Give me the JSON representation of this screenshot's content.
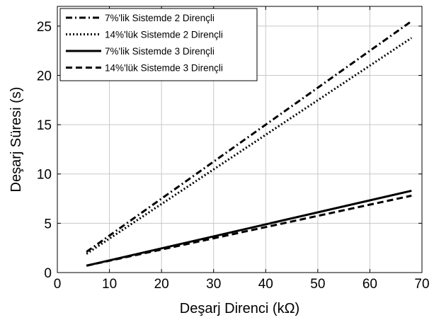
{
  "chart_data": {
    "type": "line",
    "xlabel": "Deşarj Direnci (kΩ)",
    "ylabel": "Deşarj Süresi (s)",
    "xlim": [
      0,
      70
    ],
    "ylim": [
      0,
      27
    ],
    "xticks": [
      0,
      10,
      20,
      30,
      40,
      50,
      60,
      70
    ],
    "yticks": [
      0,
      5,
      10,
      15,
      20,
      25
    ],
    "grid": true,
    "legend_position": "top-left",
    "series": [
      {
        "name": "7%'lik Sistemde 2 Dirençli",
        "style": "dash-dot",
        "x": [
          5.6,
          68
        ],
        "y": [
          2.1,
          25.5
        ]
      },
      {
        "name": "14%'lük Sistemde 2 Dirençli",
        "style": "dotted",
        "x": [
          5.6,
          68
        ],
        "y": [
          1.9,
          23.8
        ]
      },
      {
        "name": "7%'lik Sistemde 3 Dirençli",
        "style": "solid",
        "x": [
          5.6,
          68
        ],
        "y": [
          0.7,
          8.3
        ]
      },
      {
        "name": "14%'lük Sistemde 3 Dirençli",
        "style": "dashed",
        "x": [
          5.6,
          68
        ],
        "y": [
          0.7,
          7.8
        ]
      }
    ],
    "line_color": "#000000"
  }
}
